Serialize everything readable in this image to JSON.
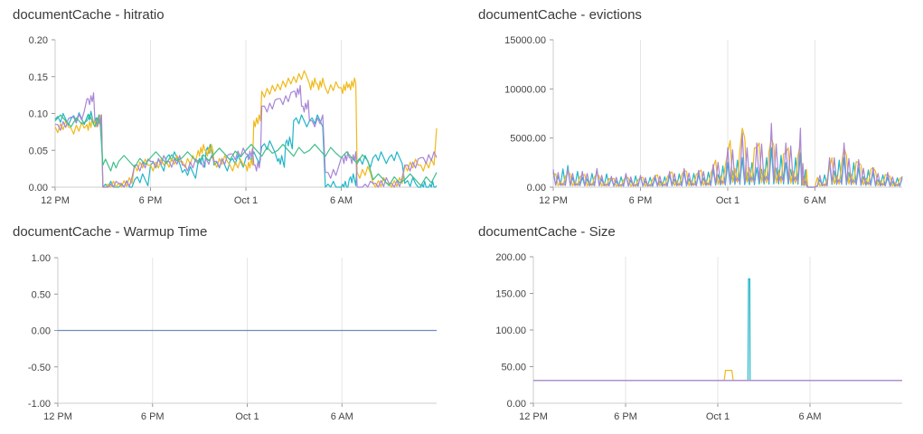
{
  "palette": [
    "#22b6c7",
    "#f0b91a",
    "#a986d6",
    "#3fbf8a",
    "#6c8ebf"
  ],
  "chart_data": [
    {
      "id": "hitratio",
      "type": "line",
      "title": "documentCache - hitratio",
      "x_ticks": [
        "12 PM",
        "6 PM",
        "Oct 1",
        "6 AM"
      ],
      "y_ticks": [
        "0.20",
        "0.15",
        "0.10",
        "0.05",
        "0.00"
      ],
      "ylim": [
        0,
        0.2
      ],
      "grid": true,
      "series": [
        {
          "color": "#22b6c7",
          "x": [
            0,
            1,
            2,
            2.5,
            3,
            4,
            5,
            6,
            7,
            8,
            9,
            9.5,
            10,
            11,
            12,
            13,
            14,
            14.5,
            15,
            16,
            17,
            18,
            18.5,
            19,
            20,
            21,
            22,
            23,
            23.5,
            24
          ],
          "values": [
            0.092,
            0.093,
            0.095,
            0.09,
            0.0,
            0.0,
            0.01,
            0.03,
            0.04,
            0.02,
            0.035,
            0.05,
            0.03,
            0.035,
            0.04,
            0.055,
            0.035,
            0.06,
            0.09,
            0.09,
            0.0,
            0.0,
            0.01,
            0.035,
            0.04,
            0.04,
            0.005,
            0.0,
            0.0,
            0.002
          ]
        },
        {
          "color": "#f0b91a",
          "x": [
            0,
            1,
            2,
            2.5,
            3,
            4,
            5,
            6,
            7,
            8,
            9,
            9.5,
            10,
            11,
            12,
            12.5,
            13,
            14,
            15,
            16,
            16.5,
            17,
            18,
            18.5,
            19,
            20,
            21,
            22,
            23,
            24
          ],
          "values": [
            0.082,
            0.08,
            0.085,
            0.09,
            0.0,
            0.005,
            0.03,
            0.03,
            0.035,
            0.035,
            0.05,
            0.05,
            0.035,
            0.03,
            0.03,
            0.09,
            0.13,
            0.14,
            0.15,
            0.14,
            0.14,
            0.135,
            0.135,
            0.14,
            0.02,
            0.005,
            0.005,
            0.03,
            0.03,
            0.08
          ]
        },
        {
          "color": "#a986d6",
          "x": [
            0,
            1,
            2,
            2.5,
            3,
            4,
            5,
            6,
            7,
            8,
            9,
            10,
            11,
            12,
            12.5,
            13,
            14,
            15,
            15.5,
            16,
            17,
            18,
            18.5,
            19,
            20,
            21,
            22,
            23,
            24
          ],
          "values": [
            0.085,
            0.095,
            0.12,
            0.09,
            0.0,
            0.005,
            0.03,
            0.035,
            0.035,
            0.03,
            0.035,
            0.035,
            0.045,
            0.045,
            0.03,
            0.11,
            0.12,
            0.13,
            0.11,
            0.09,
            0.02,
            0.04,
            0.04,
            0.0,
            0.005,
            0.005,
            0.03,
            0.04,
            0.04
          ]
        },
        {
          "color": "#3fbf8a",
          "x": [
            0,
            2,
            3,
            4,
            6,
            8,
            10,
            12,
            14,
            16,
            18,
            20,
            22,
            24
          ],
          "values": [
            0.09,
            0.09,
            0.03,
            0.035,
            0.04,
            0.04,
            0.045,
            0.05,
            0.05,
            0.05,
            0.04,
            0.01,
            0.01,
            0.02
          ]
        }
      ]
    },
    {
      "id": "evictions",
      "type": "line",
      "title": "documentCache - evictions",
      "x_ticks": [
        "12 PM",
        "6 PM",
        "Oct 1",
        "6 AM"
      ],
      "y_ticks": [
        "15000.00",
        "10000.00",
        "5000.00",
        "0.00"
      ],
      "ylim": [
        0,
        15000
      ],
      "grid": true,
      "series": [
        {
          "color": "#22b6c7",
          "x": [
            0,
            1,
            2,
            3,
            4,
            5,
            6,
            7,
            8,
            9,
            10,
            11,
            12,
            13,
            14,
            15,
            16,
            17,
            17.5,
            18,
            19,
            20,
            21,
            22,
            23,
            24
          ],
          "values": [
            1500,
            2200,
            1000,
            1800,
            900,
            1200,
            1100,
            900,
            1200,
            1500,
            1300,
            1800,
            2500,
            3000,
            2000,
            4000,
            2500,
            3500,
            0,
            0,
            2500,
            3000,
            2000,
            1500,
            1000,
            900
          ]
        },
        {
          "color": "#f0b91a",
          "x": [
            0,
            1,
            2,
            3,
            4,
            5,
            6,
            7,
            8,
            9,
            10,
            11,
            12,
            13,
            14,
            15,
            16,
            17,
            17.5,
            18,
            19,
            20,
            21,
            22,
            23,
            24
          ],
          "values": [
            1200,
            1500,
            1200,
            1400,
            800,
            1000,
            900,
            1100,
            1400,
            1700,
            1500,
            2000,
            3500,
            6000,
            4000,
            5000,
            3500,
            4500,
            0,
            0,
            2000,
            4000,
            2500,
            2000,
            1200,
            1000
          ]
        },
        {
          "color": "#a986d6",
          "x": [
            0,
            1,
            2,
            3,
            4,
            5,
            6,
            7,
            8,
            9,
            10,
            11,
            12,
            13,
            14,
            15,
            16,
            17,
            17.5,
            18,
            19,
            20,
            21,
            22,
            23,
            24
          ],
          "values": [
            1800,
            1900,
            1600,
            1900,
            1100,
            1400,
            1200,
            1200,
            1600,
            1900,
            1700,
            2300,
            4000,
            5500,
            4500,
            6500,
            4500,
            6000,
            0,
            0,
            3000,
            4500,
            2800,
            2000,
            1500,
            1100
          ]
        }
      ]
    },
    {
      "id": "warmup",
      "type": "line",
      "title": "documentCache - Warmup Time",
      "x_ticks": [
        "12 PM",
        "6 PM",
        "Oct 1",
        "6 AM"
      ],
      "y_ticks": [
        "1.00",
        "0.50",
        "0.00",
        "-0.50",
        "-1.00"
      ],
      "ylim": [
        -1,
        1
      ],
      "grid": true,
      "series": [
        {
          "color": "#6c8ebf",
          "x": [
            0,
            24
          ],
          "values": [
            0,
            0
          ]
        }
      ]
    },
    {
      "id": "size",
      "type": "line",
      "title": "documentCache - Size",
      "x_ticks": [
        "12 PM",
        "6 PM",
        "Oct 1",
        "6 AM"
      ],
      "y_ticks": [
        "200.00",
        "150.00",
        "100.00",
        "50.00",
        "0.00"
      ],
      "ylim": [
        0,
        200
      ],
      "grid": true,
      "series": [
        {
          "color": "#22b6c7",
          "x": [
            0,
            1,
            1.5,
            2,
            3,
            4,
            5,
            6,
            8,
            10,
            12,
            13,
            13.8,
            14,
            14.1,
            14.2,
            15,
            17,
            18,
            19,
            20,
            21,
            22,
            23,
            24
          ],
          "values": [
            31,
            31,
            31,
            31,
            31,
            31,
            31,
            31,
            31,
            31,
            31,
            31,
            31,
            170,
            31,
            31,
            31,
            31,
            31,
            31,
            31,
            31,
            31,
            31,
            31
          ]
        },
        {
          "color": "#f0b91a",
          "x": [
            0,
            1,
            2,
            4,
            6,
            8,
            10,
            12,
            12.5,
            13,
            14,
            16,
            18,
            20,
            22,
            24
          ],
          "values": [
            31,
            31,
            31,
            31,
            31,
            31,
            31,
            31,
            45,
            31,
            31,
            31,
            31,
            31,
            31,
            31
          ]
        },
        {
          "color": "#a986d6",
          "x": [
            0,
            1,
            2,
            4,
            6,
            8,
            10,
            12,
            14,
            16,
            18,
            19,
            20,
            22,
            24
          ],
          "values": [
            31,
            31,
            31,
            31,
            31,
            31,
            31,
            31,
            31,
            31,
            31,
            31,
            31,
            31,
            31
          ]
        }
      ]
    }
  ]
}
